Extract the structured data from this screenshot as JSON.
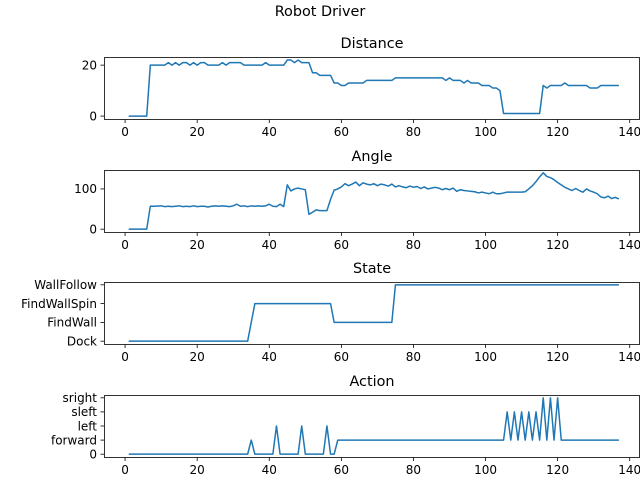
{
  "suptitle": "Robot Driver",
  "colors": {
    "series": "#1f77b4",
    "axes": "#000000",
    "background": "#ffffff"
  },
  "chart_data": [
    {
      "type": "line",
      "title": "Distance",
      "xlim": [
        -5.85,
        142.85
      ],
      "ylim": [
        -1.15,
        23.2
      ],
      "xticks": [
        0,
        20,
        40,
        60,
        80,
        100,
        120,
        140
      ],
      "yticks": [
        0,
        20
      ],
      "series": [
        {
          "points": [
            [
              1,
              0
            ],
            [
              6,
              0
            ],
            [
              7,
              20
            ],
            [
              11,
              20
            ],
            [
              12,
              21
            ],
            [
              13,
              20
            ],
            [
              14,
              21
            ],
            [
              15,
              20
            ],
            [
              16,
              21
            ],
            [
              17,
              21
            ],
            [
              18,
              20
            ],
            [
              19,
              21
            ],
            [
              20,
              20
            ],
            [
              21,
              21
            ],
            [
              22,
              21
            ],
            [
              23,
              20
            ],
            [
              26,
              20
            ],
            [
              27,
              21
            ],
            [
              28,
              20
            ],
            [
              29,
              21
            ],
            [
              32,
              21
            ],
            [
              33,
              20
            ],
            [
              38,
              20
            ],
            [
              39,
              21
            ],
            [
              40,
              20
            ],
            [
              44,
              20
            ],
            [
              45,
              22
            ],
            [
              46,
              22
            ],
            [
              47,
              21
            ],
            [
              48,
              22
            ],
            [
              49,
              21
            ],
            [
              51,
              21
            ],
            [
              52,
              17
            ],
            [
              53,
              17
            ],
            [
              54,
              16
            ],
            [
              57,
              16
            ],
            [
              58,
              13
            ],
            [
              59,
              13
            ],
            [
              60,
              12
            ],
            [
              61,
              12
            ],
            [
              62,
              13
            ],
            [
              66,
              13
            ],
            [
              67,
              14
            ],
            [
              74,
              14
            ],
            [
              75,
              15
            ],
            [
              88,
              15
            ],
            [
              89,
              14
            ],
            [
              90,
              15
            ],
            [
              91,
              14
            ],
            [
              93,
              14
            ],
            [
              94,
              13
            ],
            [
              95,
              14
            ],
            [
              96,
              13
            ],
            [
              98,
              13
            ],
            [
              99,
              12
            ],
            [
              101,
              12
            ],
            [
              102,
              11
            ],
            [
              103,
              11
            ],
            [
              104,
              10
            ],
            [
              105,
              1
            ],
            [
              115,
              1
            ],
            [
              116,
              12
            ],
            [
              117,
              11
            ],
            [
              118,
              12
            ],
            [
              121,
              12
            ],
            [
              122,
              13
            ],
            [
              123,
              12
            ],
            [
              128,
              12
            ],
            [
              129,
              11
            ],
            [
              131,
              11
            ],
            [
              132,
              12
            ],
            [
              137,
              12
            ]
          ]
        }
      ]
    },
    {
      "type": "line",
      "title": "Angle",
      "xlim": [
        -5.85,
        142.85
      ],
      "ylim": [
        -7,
        147
      ],
      "xticks": [
        0,
        20,
        40,
        60,
        80,
        100,
        120,
        140
      ],
      "yticks": [
        0,
        100
      ],
      "series": [
        {
          "points": [
            [
              1,
              0
            ],
            [
              6,
              0
            ],
            [
              7,
              57
            ],
            [
              8,
              57
            ],
            [
              10,
              58
            ],
            [
              11,
              56
            ],
            [
              12,
              57
            ],
            [
              13,
              56
            ],
            [
              14,
              57
            ],
            [
              15,
              58
            ],
            [
              16,
              56
            ],
            [
              17,
              57
            ],
            [
              18,
              56
            ],
            [
              19,
              58
            ],
            [
              20,
              56
            ],
            [
              21,
              57
            ],
            [
              22,
              57
            ],
            [
              23,
              55
            ],
            [
              24,
              57
            ],
            [
              25,
              58
            ],
            [
              26,
              57
            ],
            [
              27,
              58
            ],
            [
              28,
              57
            ],
            [
              29,
              56
            ],
            [
              30,
              58
            ],
            [
              31,
              62
            ],
            [
              32,
              57
            ],
            [
              33,
              58
            ],
            [
              34,
              56
            ],
            [
              35,
              58
            ],
            [
              36,
              57
            ],
            [
              37,
              58
            ],
            [
              38,
              57
            ],
            [
              39,
              58
            ],
            [
              40,
              62
            ],
            [
              41,
              57
            ],
            [
              42,
              56
            ],
            [
              43,
              62
            ],
            [
              44,
              56
            ],
            [
              45,
              110
            ],
            [
              46,
              95
            ],
            [
              47,
              100
            ],
            [
              48,
              102
            ],
            [
              49,
              100
            ],
            [
              50,
              98
            ],
            [
              51,
              37
            ],
            [
              52,
              42
            ],
            [
              53,
              48
            ],
            [
              54,
              46
            ],
            [
              56,
              46
            ],
            [
              57,
              74
            ],
            [
              58,
              97
            ],
            [
              59,
              100
            ],
            [
              60,
              105
            ],
            [
              61,
              113
            ],
            [
              62,
              108
            ],
            [
              63,
              112
            ],
            [
              64,
              117
            ],
            [
              65,
              108
            ],
            [
              66,
              115
            ],
            [
              67,
              112
            ],
            [
              68,
              110
            ],
            [
              69,
              113
            ],
            [
              70,
              108
            ],
            [
              71,
              112
            ],
            [
              72,
              110
            ],
            [
              73,
              107
            ],
            [
              74,
              112
            ],
            [
              75,
              105
            ],
            [
              76,
              108
            ],
            [
              77,
              105
            ],
            [
              78,
              103
            ],
            [
              79,
              107
            ],
            [
              80,
              104
            ],
            [
              81,
              106
            ],
            [
              82,
              101
            ],
            [
              83,
              105
            ],
            [
              84,
              100
            ],
            [
              85,
              102
            ],
            [
              86,
              104
            ],
            [
              87,
              102
            ],
            [
              88,
              98
            ],
            [
              89,
              101
            ],
            [
              90,
              98
            ],
            [
              91,
              102
            ],
            [
              92,
              94
            ],
            [
              93,
              98
            ],
            [
              94,
              96
            ],
            [
              95,
              95
            ],
            [
              96,
              94
            ],
            [
              97,
              93
            ],
            [
              98,
              90
            ],
            [
              99,
              92
            ],
            [
              100,
              90
            ],
            [
              101,
              88
            ],
            [
              102,
              92
            ],
            [
              103,
              88
            ],
            [
              104,
              88
            ],
            [
              105,
              90
            ],
            [
              106,
              92
            ],
            [
              107,
              92
            ],
            [
              108,
              92
            ],
            [
              110,
              92
            ],
            [
              111,
              93
            ],
            [
              112,
              100
            ],
            [
              113,
              108
            ],
            [
              114,
              118
            ],
            [
              115,
              130
            ],
            [
              116,
              140
            ],
            [
              117,
              131
            ],
            [
              118,
              128
            ],
            [
              119,
              123
            ],
            [
              120,
              116
            ],
            [
              121,
              110
            ],
            [
              122,
              104
            ],
            [
              123,
              100
            ],
            [
              124,
              96
            ],
            [
              125,
              101
            ],
            [
              126,
              96
            ],
            [
              127,
              92
            ],
            [
              128,
              100
            ],
            [
              129,
              95
            ],
            [
              130,
              92
            ],
            [
              131,
              88
            ],
            [
              132,
              80
            ],
            [
              133,
              78
            ],
            [
              134,
              82
            ],
            [
              135,
              76
            ],
            [
              136,
              79
            ],
            [
              137,
              75
            ]
          ]
        }
      ]
    },
    {
      "type": "line",
      "title": "State",
      "xlim": [
        -5.85,
        142.85
      ],
      "ylim": [
        -0.15,
        3.15
      ],
      "xticks": [
        0,
        20,
        40,
        60,
        80,
        100,
        120,
        140
      ],
      "ytick_labels": [
        "Dock",
        "FindWall",
        "FindWallSpin",
        "WallFollow"
      ],
      "yticks": [
        0,
        1,
        2,
        3
      ],
      "series": [
        {
          "points": [
            [
              1,
              0
            ],
            [
              34,
              0
            ],
            [
              35,
              1
            ],
            [
              36,
              2
            ],
            [
              57,
              2
            ],
            [
              58,
              1
            ],
            [
              74,
              1
            ],
            [
              75,
              3
            ],
            [
              137,
              3
            ]
          ]
        }
      ]
    },
    {
      "type": "line",
      "title": "Action",
      "xlim": [
        -5.85,
        142.85
      ],
      "ylim": [
        -0.2,
        4.2
      ],
      "xticks": [
        0,
        20,
        40,
        60,
        80,
        100,
        120,
        140
      ],
      "ytick_labels": [
        "0",
        "forward",
        "left",
        "sleft",
        "sright"
      ],
      "yticks": [
        0,
        1,
        2,
        3,
        4
      ],
      "series": [
        {
          "points": [
            [
              1,
              0
            ],
            [
              34,
              0
            ],
            [
              35,
              1
            ],
            [
              36,
              0
            ],
            [
              41,
              0
            ],
            [
              42,
              2
            ],
            [
              43,
              0
            ],
            [
              48,
              0
            ],
            [
              49,
              2
            ],
            [
              50,
              0
            ],
            [
              55,
              0
            ],
            [
              56,
              2
            ],
            [
              57,
              0
            ],
            [
              58,
              0
            ],
            [
              59,
              1
            ],
            [
              105,
              1
            ],
            [
              106,
              3
            ],
            [
              107,
              1
            ],
            [
              108,
              3
            ],
            [
              109,
              1
            ],
            [
              110,
              3
            ],
            [
              111,
              1
            ],
            [
              112,
              3
            ],
            [
              113,
              1
            ],
            [
              114,
              3
            ],
            [
              115,
              1
            ],
            [
              116,
              4
            ],
            [
              117,
              1
            ],
            [
              118,
              4
            ],
            [
              119,
              1
            ],
            [
              120,
              4
            ],
            [
              121,
              1
            ],
            [
              137,
              1
            ]
          ]
        }
      ]
    }
  ]
}
